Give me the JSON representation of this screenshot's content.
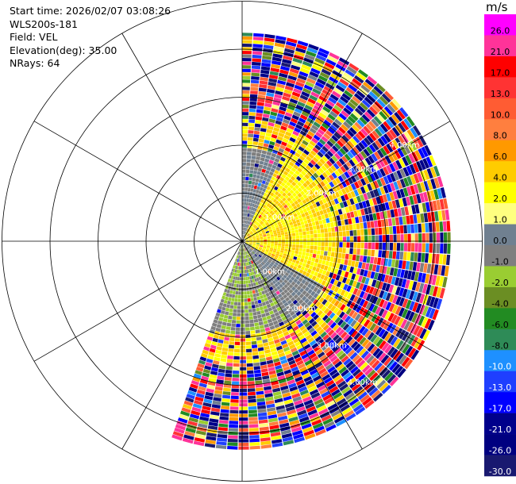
{
  "header": {
    "start_time": "Start time: 2026/02/07 03:08:26",
    "site": "WLS200s-181",
    "field": "Field: VEL",
    "elevation": "Elevation(deg): 35.00",
    "nrays": "NRays: 64"
  },
  "colorbar": {
    "title": "m/s",
    "tick_labels": [
      "26.0",
      "21.0",
      "17.0",
      "13.0",
      "10.0",
      "8.0",
      "6.0",
      "4.0",
      "2.0",
      "1.0",
      "0.0",
      "-1.0",
      "-2.0",
      "-4.0",
      "-6.0",
      "-8.0",
      "-10.0",
      "-13.0",
      "-17.0",
      "-21.0",
      "-26.0",
      "-30.0"
    ],
    "colors": [
      "#ff00ff",
      "#ff3399",
      "#ff0000",
      "#ff3333",
      "#ff5c33",
      "#ff7f3f",
      "#ff9900",
      "#ffcc00",
      "#ffff00",
      "#ffff80",
      "#708090",
      "#7f7f7f",
      "#9acd32",
      "#6b8e23",
      "#228b22",
      "#2e8b57",
      "#1e90ff",
      "#1f3fff",
      "#0000ff",
      "#00008b",
      "#000080",
      "#191970"
    ]
  },
  "range_ring_labels": [
    "1.00km",
    "2.00km",
    "3.00km",
    "4.00km"
  ],
  "chart_data": {
    "type": "polar ppi sector",
    "field": "VEL",
    "units": "m/s",
    "azimuth_coverage_deg": [
      0,
      200
    ],
    "n_rays": 64,
    "range_rings_km": [
      1,
      2,
      3,
      4
    ],
    "max_range_km": 4.4,
    "value_range": [
      -30,
      26
    ],
    "spokes_every_deg": 30
  }
}
